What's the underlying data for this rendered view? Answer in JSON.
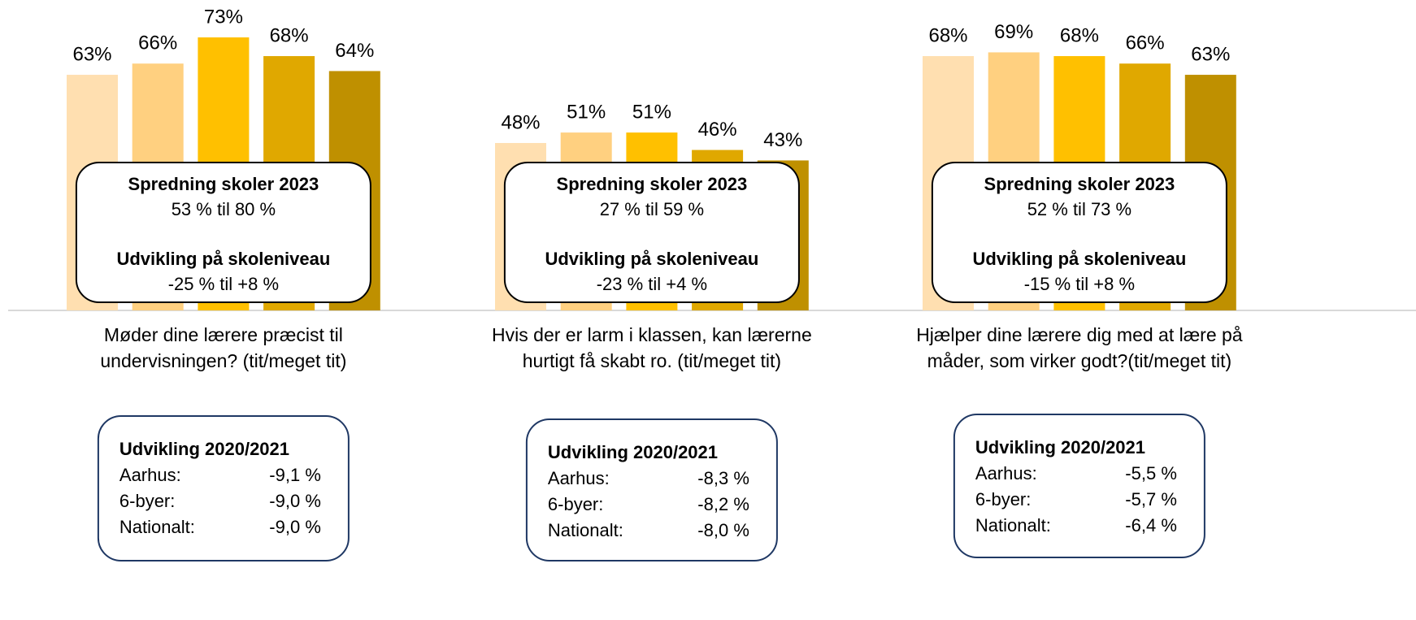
{
  "chart_data": [
    {
      "type": "bar",
      "title": [
        "Møder dine lærere præcist til",
        "undervisningen? (tit/meget tit)"
      ],
      "values": [
        63,
        66,
        73,
        68,
        64
      ],
      "value_labels": [
        "63%",
        "66%",
        "73%",
        "68%",
        "64%"
      ],
      "colors": [
        "#ffdfb0",
        "#ffd080",
        "#ffc000",
        "#e0a800",
        "#bf9000"
      ],
      "ylim": [
        0,
        83
      ],
      "spread": {
        "title": "Spredning skoler 2023",
        "text": "53 % til 80 %"
      },
      "development": {
        "title": "Udvikling på skoleniveau",
        "text": "-25 % til +8 %"
      },
      "history": {
        "title": "Udvikling 2020/2021",
        "rows": [
          [
            "Aarhus:",
            "-9,1 %"
          ],
          [
            "6-byer:",
            "-9,0 %"
          ],
          [
            "Nationalt:",
            "-9,0 %"
          ]
        ]
      }
    },
    {
      "type": "bar",
      "title": [
        "Hvis der er larm i klassen, kan lærerne",
        "hurtigt få skabt ro. (tit/meget tit)"
      ],
      "values": [
        48,
        51,
        51,
        46,
        43
      ],
      "value_labels": [
        "48%",
        "51%",
        "51%",
        "46%",
        "43%"
      ],
      "colors": [
        "#ffdfb0",
        "#ffd080",
        "#ffc000",
        "#e0a800",
        "#bf9000"
      ],
      "ylim": [
        0,
        89
      ],
      "spread": {
        "title": "Spredning skoler 2023",
        "text": "27 % til 59 %"
      },
      "development": {
        "title": "Udvikling på skoleniveau",
        "text": "-23 % til +4 %"
      },
      "history": {
        "title": "Udvikling 2020/2021",
        "rows": [
          [
            "Aarhus:",
            "-8,3 %"
          ],
          [
            "6-byer:",
            "-8,2 %"
          ],
          [
            "Nationalt:",
            "-8,0 %"
          ]
        ]
      }
    },
    {
      "type": "bar",
      "title": [
        "Hjælper dine lærere dig med at lære på",
        "måder, som virker godt?(tit/meget tit)"
      ],
      "values": [
        68,
        69,
        68,
        66,
        63
      ],
      "value_labels": [
        "68%",
        "69%",
        "68%",
        "66%",
        "63%"
      ],
      "colors": [
        "#ffdfb0",
        "#ffd080",
        "#ffc000",
        "#e0a800",
        "#bf9000"
      ],
      "ylim": [
        0,
        83
      ],
      "spread": {
        "title": "Spredning skoler 2023",
        "text": "52 % til 73 %"
      },
      "development": {
        "title": "Udvikling på skoleniveau",
        "text": "-15 % til +8 %"
      },
      "history": {
        "title": "Udvikling 2020/2021",
        "rows": [
          [
            "Aarhus:",
            "-5,5 %"
          ],
          [
            "6-byer:",
            "-5,7 %"
          ],
          [
            "Nationalt:",
            "-6,4 %"
          ]
        ]
      }
    }
  ]
}
